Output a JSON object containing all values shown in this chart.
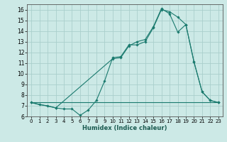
{
  "xlabel": "Humidex (Indice chaleur)",
  "xlim": [
    -0.5,
    23.5
  ],
  "ylim": [
    6,
    16.5
  ],
  "yticks": [
    6,
    7,
    8,
    9,
    10,
    11,
    12,
    13,
    14,
    15,
    16
  ],
  "xticks": [
    0,
    1,
    2,
    3,
    4,
    5,
    6,
    7,
    8,
    9,
    10,
    11,
    12,
    13,
    14,
    15,
    16,
    17,
    18,
    19,
    20,
    21,
    22,
    23
  ],
  "bg_color": "#cce9e6",
  "line_color": "#1a7a6e",
  "grid_color": "#aacfcc",
  "line1_x": [
    0,
    1,
    2,
    3,
    4,
    5,
    6,
    7,
    8,
    9,
    10,
    11,
    12,
    13,
    14,
    15,
    16,
    17,
    18,
    19,
    20,
    21,
    22,
    23
  ],
  "line1_y": [
    7.3,
    7.1,
    7.0,
    6.8,
    6.7,
    6.7,
    6.1,
    6.6,
    7.5,
    9.3,
    11.5,
    11.6,
    12.7,
    12.7,
    13.0,
    14.3,
    16.0,
    15.8,
    15.3,
    14.6,
    11.1,
    8.3,
    7.5,
    7.3
  ],
  "line2_x": [
    0,
    3,
    10,
    11,
    12,
    13,
    14,
    15,
    16,
    17,
    18,
    19,
    20,
    21,
    22,
    23
  ],
  "line2_y": [
    7.3,
    6.8,
    11.4,
    11.5,
    12.6,
    13.0,
    13.2,
    14.4,
    16.1,
    15.6,
    13.9,
    14.6,
    11.1,
    8.3,
    7.5,
    7.3
  ],
  "line3_x": [
    0,
    23
  ],
  "line3_y": [
    7.3,
    7.3
  ]
}
